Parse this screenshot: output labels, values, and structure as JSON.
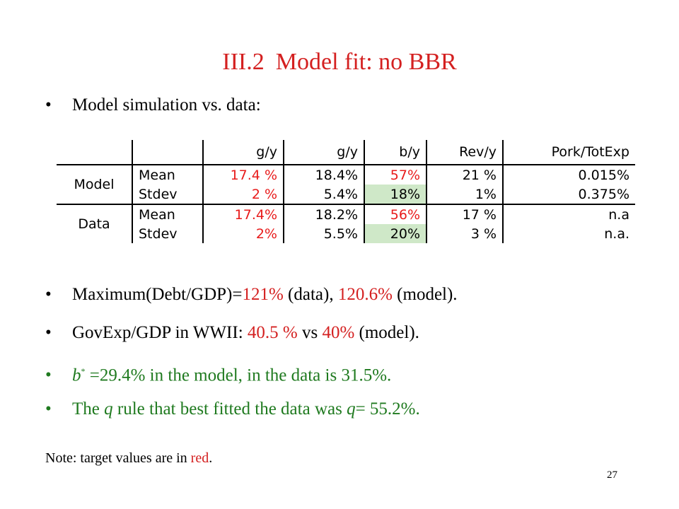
{
  "title": {
    "section": "III.2",
    "text": "Model fit: no BBR"
  },
  "bullet1": "Model simulation vs. data:",
  "table": {
    "headers": [
      "g/y",
      "g/y",
      "b/y",
      "Rev/y",
      "Pork/TotExp"
    ],
    "groups": [
      {
        "label": "Model",
        "rows": [
          {
            "stat": "Mean",
            "cells": [
              "17.4 %",
              "18.4%",
              "57%",
              "21 %",
              "0.015%"
            ]
          },
          {
            "stat": "Stdev",
            "cells": [
              "2 %",
              "5.4%",
              "18%",
              "1%",
              "0.375%"
            ]
          }
        ]
      },
      {
        "label": "Data",
        "rows": [
          {
            "stat": "Mean",
            "cells": [
              "17.4%",
              "18.2%",
              "56%",
              "17 %",
              "n.a"
            ]
          },
          {
            "stat": "Stdev",
            "cells": [
              "2%",
              "5.5%",
              "20%",
              "3 %",
              "n.a."
            ]
          }
        ]
      }
    ],
    "colors": {
      "target_red": "#e81b1b",
      "highlight_green": "#cfe8c8"
    }
  },
  "bullet2": {
    "a": "Maximum(Debt/GDP)=",
    "b": "121%",
    "c": " (data), ",
    "d": "120.6%",
    "e": " (model)."
  },
  "bullet3": {
    "a": "GovExp/GDP in WWII: ",
    "b": "40.5 %",
    "c": " vs ",
    "d": "40%",
    "e": " (model)."
  },
  "bullet4": {
    "var": "b",
    "star": "*",
    "rest": " =29.4% in the model, in the data is 31.5%."
  },
  "bullet5": {
    "a": "The ",
    "q1": "q",
    "b": " rule that best fitted the data was ",
    "q2": "q",
    "c": "= 55.2%."
  },
  "note": {
    "a": "Note: target values are in ",
    "b": "red",
    "c": "."
  },
  "page_number": "27",
  "colors": {
    "title_red": "#d42020",
    "green": "#1f7a1f",
    "bullet_dot": "•"
  }
}
